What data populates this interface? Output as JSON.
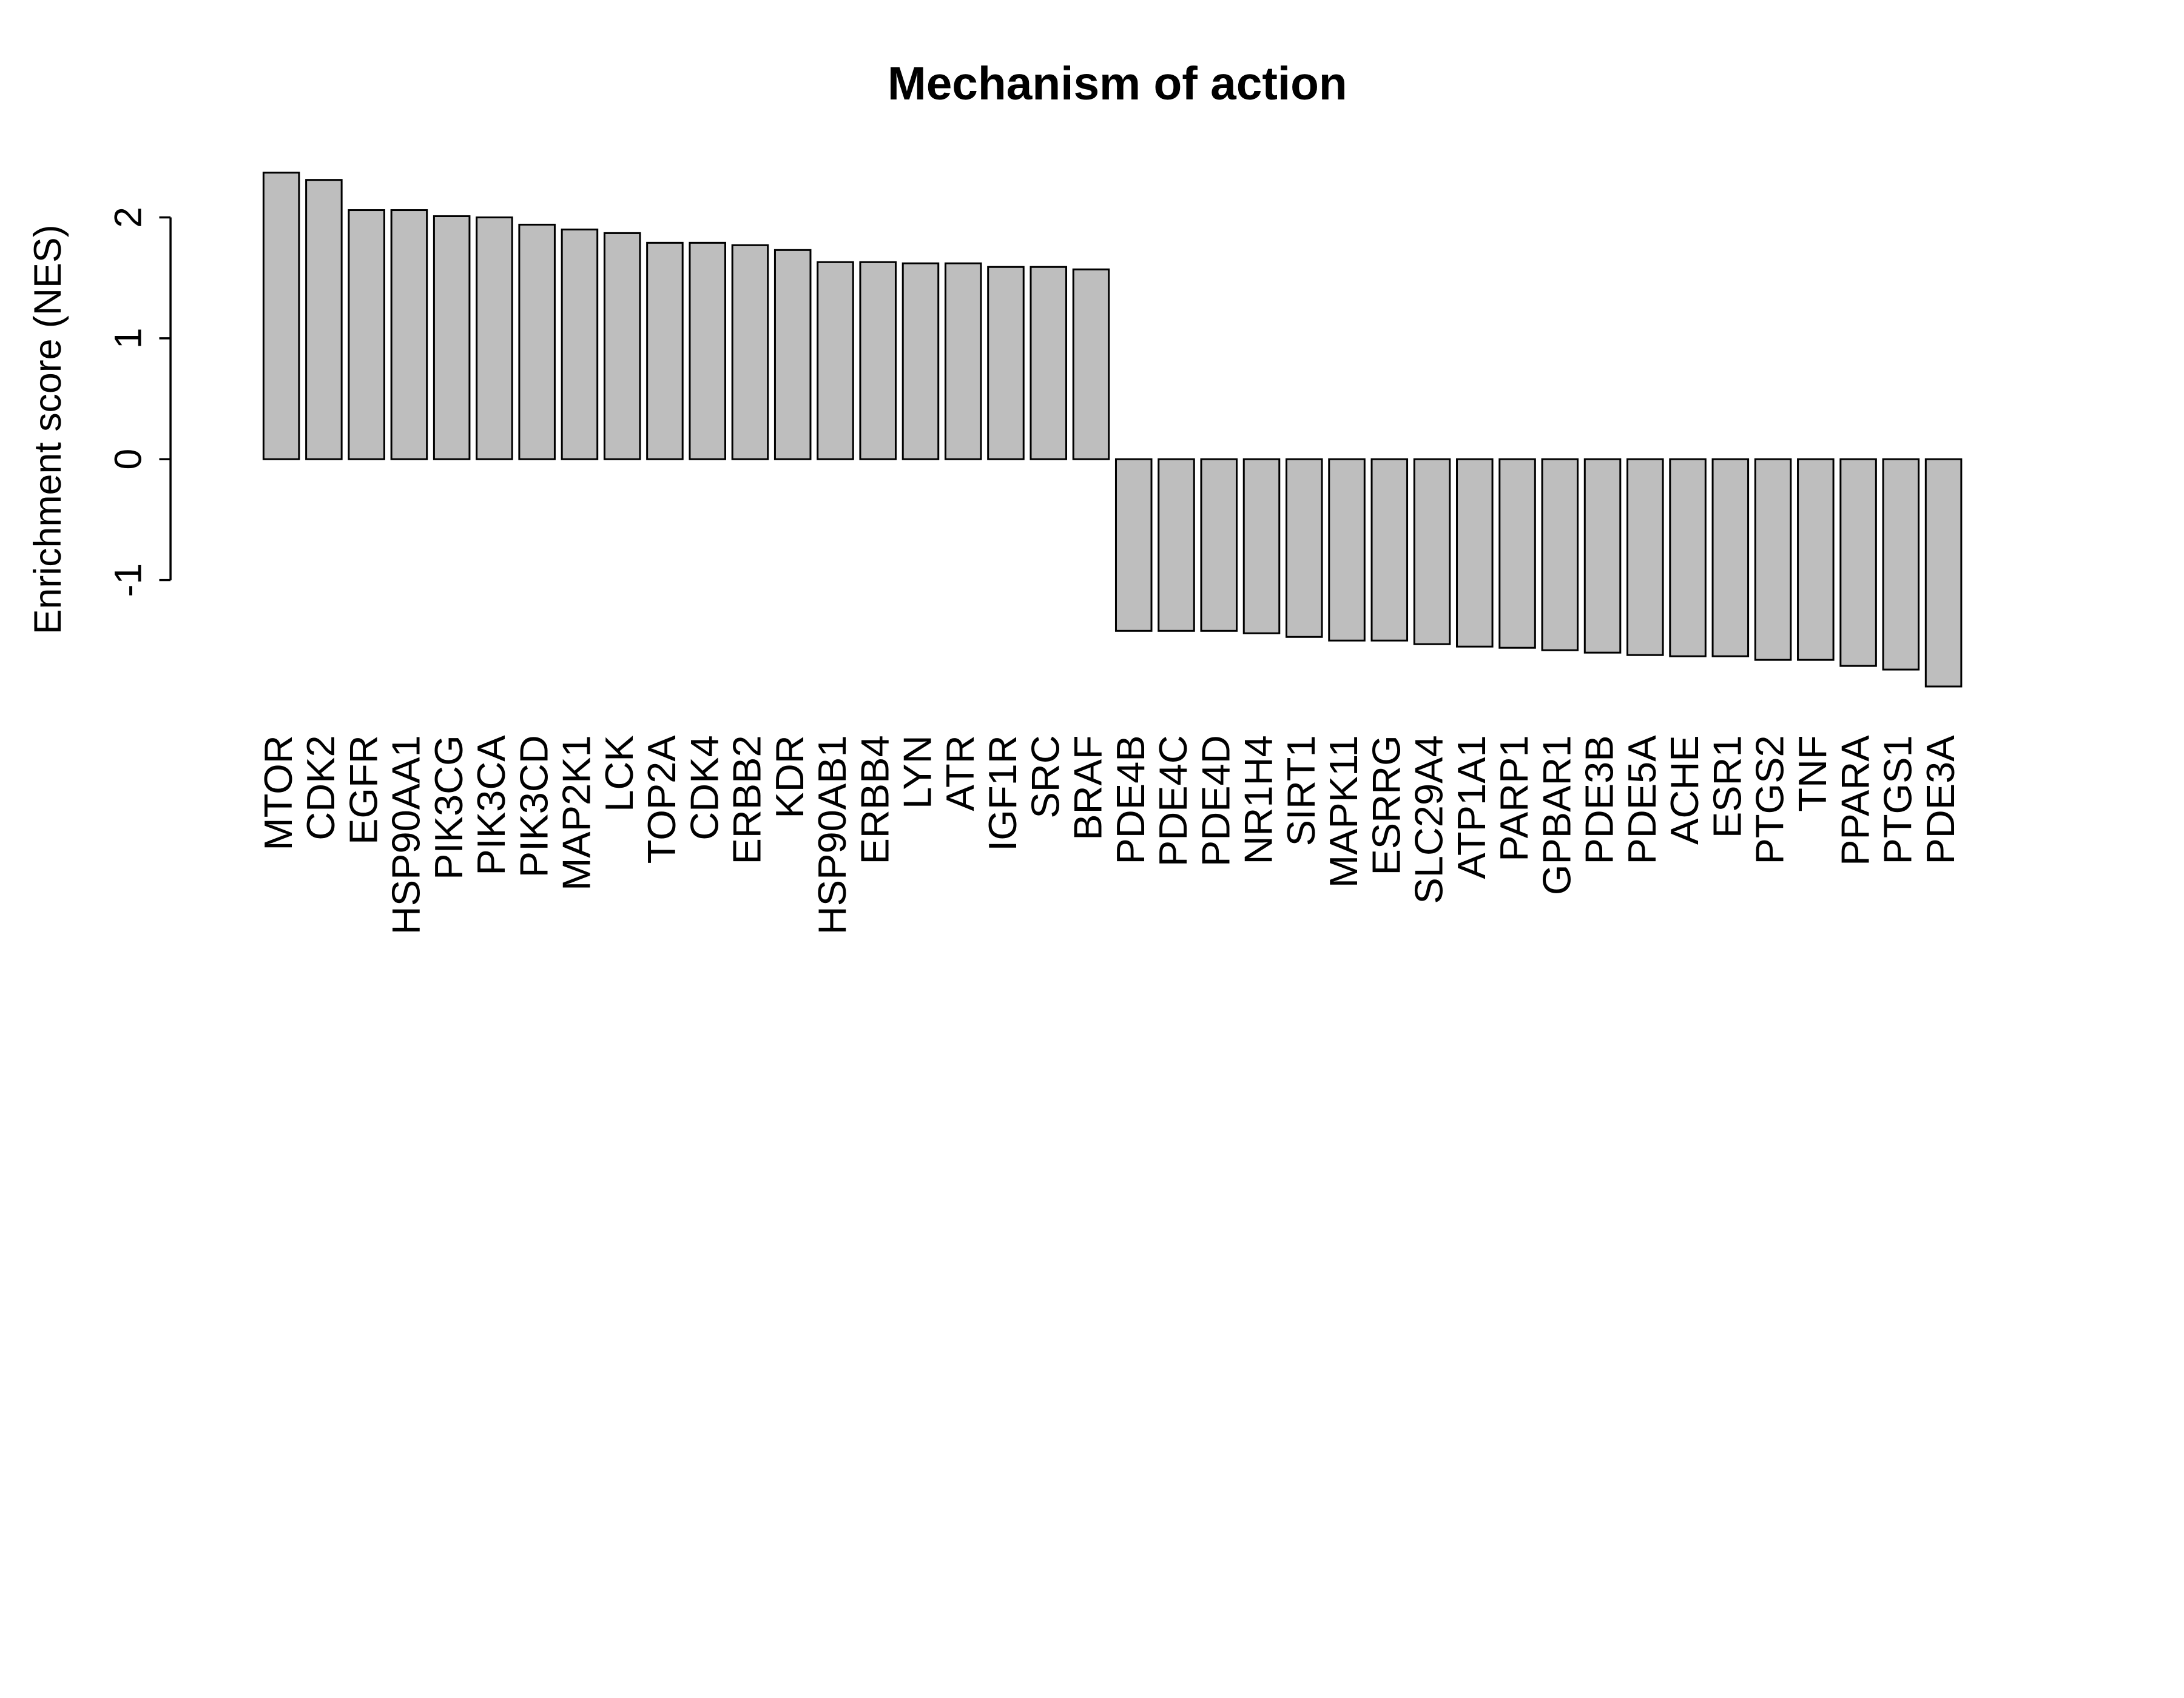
{
  "chart_data": {
    "type": "bar",
    "title": "Mechanism of action",
    "y_label": "Enrichment score  (NES)",
    "categories": [
      "MTOR",
      "CDK2",
      "EGFR",
      "HSP90AA1",
      "PIK3CG",
      "PIK3CA",
      "PIK3CD",
      "MAP2K1",
      "LCK",
      "TOP2A",
      "CDK4",
      "ERBB2",
      "KDR",
      "HSP90AB1",
      "ERBB4",
      "LYN",
      "ATR",
      "IGF1R",
      "SRC",
      "BRAF",
      "PDE4B",
      "PDE4C",
      "PDE4D",
      "NR1H4",
      "SIRT1",
      "MAPK11",
      "ESRRG",
      "SLC29A4",
      "ATP1A1",
      "PARP1",
      "GPBAR1",
      "PDE3B",
      "PDE5A",
      "ACHE",
      "ESR1",
      "PTGS2",
      "TNF",
      "PPARA",
      "PTGS1",
      "PDE3A"
    ],
    "values": [
      2.37,
      2.31,
      2.06,
      2.06,
      2.01,
      2.0,
      1.94,
      1.9,
      1.87,
      1.79,
      1.79,
      1.77,
      1.73,
      1.63,
      1.63,
      1.62,
      1.62,
      1.59,
      1.59,
      1.57,
      -1.42,
      -1.42,
      -1.42,
      -1.44,
      -1.47,
      -1.5,
      -1.5,
      -1.53,
      -1.55,
      -1.56,
      -1.58,
      -1.6,
      -1.62,
      -1.63,
      -1.63,
      -1.66,
      -1.66,
      -1.71,
      -1.74,
      -1.88
    ],
    "color": "#bebebe",
    "ylim": [
      -2.05,
      2.54
    ],
    "yticks": [
      -1,
      0,
      1,
      2
    ]
  }
}
